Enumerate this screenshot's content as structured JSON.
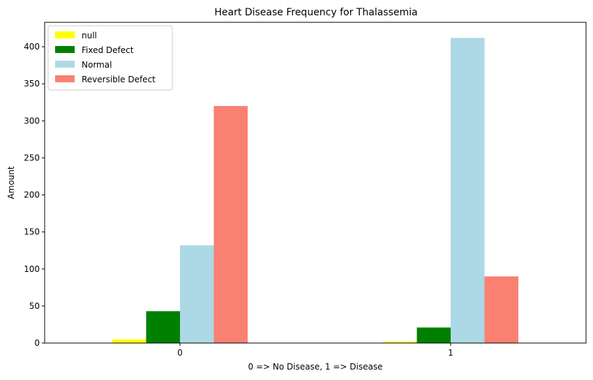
{
  "chart_data": {
    "type": "bar",
    "title": "Heart Disease Frequency for Thalassemia",
    "xlabel": "0 => No Disease, 1 => Disease",
    "ylabel": "Amount",
    "categories": [
      "0",
      "1"
    ],
    "ylim": [
      0,
      433
    ],
    "yticks": [
      0,
      50,
      100,
      150,
      200,
      250,
      300,
      350,
      400
    ],
    "grid": false,
    "legend_position": "top-left",
    "series": [
      {
        "name": "null",
        "color": "#ffff00",
        "values": [
          5,
          2
        ]
      },
      {
        "name": "Fixed Defect",
        "color": "#008000",
        "values": [
          43,
          21
        ]
      },
      {
        "name": "Normal",
        "color": "#add8e6",
        "values": [
          132,
          412
        ]
      },
      {
        "name": "Reversible Defect",
        "color": "#fa8072",
        "values": [
          320,
          90
        ]
      }
    ]
  }
}
